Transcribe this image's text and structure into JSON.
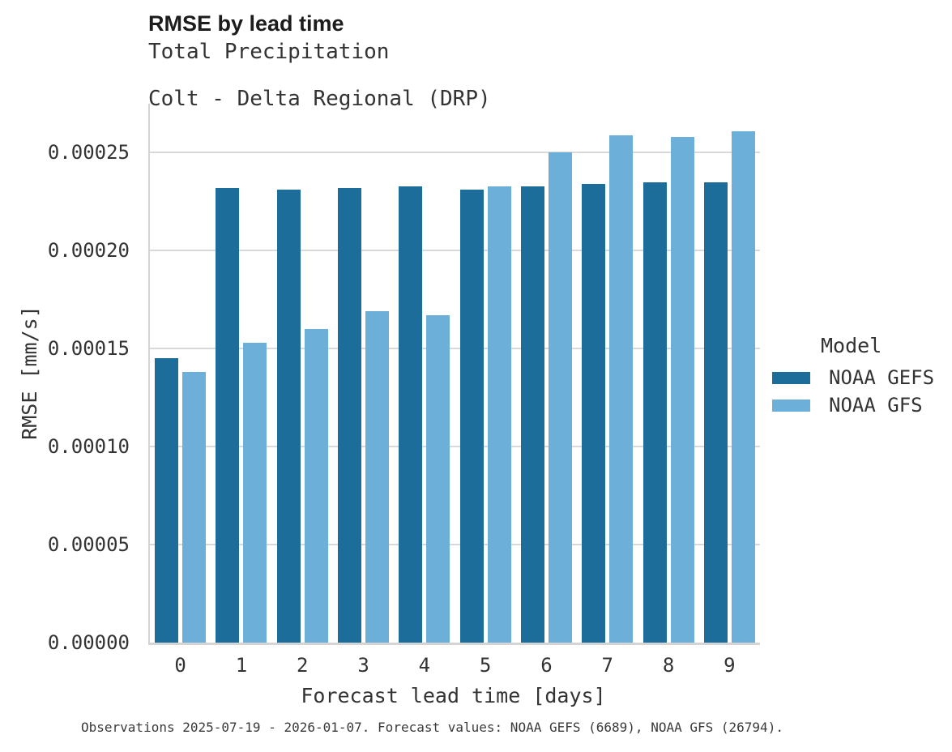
{
  "header": {
    "title": "RMSE by lead time",
    "subtitle_line1": "Total Precipitation",
    "subtitle_line2": "Colt - Delta Regional (DRP)"
  },
  "caption": "Observations 2025-07-19 - 2026-01-07. Forecast values: NOAA GEFS (6689), NOAA GFS (26794).",
  "legend": {
    "title": "Model"
  },
  "chart_data": {
    "type": "bar",
    "title": "RMSE by lead time",
    "subtitle": [
      "Total Precipitation",
      "Colt - Delta Regional (DRP)"
    ],
    "categories": [
      "0",
      "1",
      "2",
      "3",
      "4",
      "5",
      "6",
      "7",
      "8",
      "9"
    ],
    "series": [
      {
        "name": "NOAA GEFS",
        "color": "#1c6d99",
        "values": [
          0.000145,
          0.000232,
          0.000231,
          0.000232,
          0.000233,
          0.000231,
          0.000233,
          0.000234,
          0.000235,
          0.000235
        ]
      },
      {
        "name": "NOAA GFS",
        "color": "#6cb0d9",
        "values": [
          0.000138,
          0.000153,
          0.00016,
          0.000169,
          0.000167,
          0.000233,
          0.00025,
          0.000259,
          0.000258,
          0.000261
        ]
      }
    ],
    "xlabel": "Forecast lead time [days]",
    "ylabel": "RMSE [mm/s]",
    "ylim": [
      0,
      0.000275
    ],
    "yticks": [
      0.0,
      5e-05,
      0.0001,
      0.00015,
      0.0002,
      0.00025
    ],
    "ytick_labels": [
      "0.00000",
      "0.00005",
      "0.00010",
      "0.00015",
      "0.00020",
      "0.00025"
    ],
    "grid": "horizontal",
    "legend_title": "Model",
    "legend_position": "right",
    "colors": {
      "grid": "#d9d9d9",
      "axis": "#d4d4d4",
      "title_text": "#1c1c1c",
      "text": "#333333",
      "caption_text": "#3a3a3a",
      "background": "#ffffff"
    }
  }
}
